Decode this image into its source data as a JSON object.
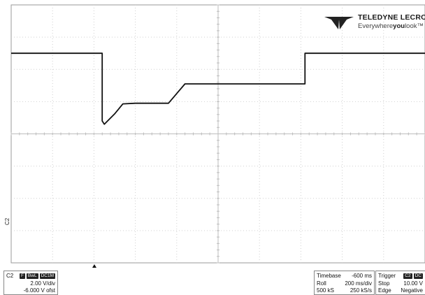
{
  "brand": {
    "name": "TELEDYNE LECROY",
    "tagline_pre": "Everywhere",
    "tagline_bold": "you",
    "tagline_post": "look",
    "tagline_tm": "™"
  },
  "channel": {
    "name": "C2",
    "marker": "C2",
    "badges": [
      "F",
      "BwL",
      "DC1M"
    ],
    "scale": "2.00 V/div",
    "offset": "-6.000 V ofst",
    "color": "#111111"
  },
  "timebase": {
    "title": "Timebase",
    "delay": "-600 ms",
    "mode": "Roll",
    "rate": "200 ms/div",
    "samples": "500 kS",
    "sample_rate": "250 kS/s"
  },
  "trigger": {
    "title": "Trigger",
    "badge": "C2",
    "badge2": "DC",
    "state": "Stop",
    "level": "10.00 V",
    "type": "Edge",
    "slope": "Negative"
  },
  "chart_data": {
    "type": "line",
    "grid": true,
    "divisions_x": 10,
    "divisions_y": 8,
    "x_unit": "div",
    "y_unit": "div",
    "ylim": [
      0,
      8
    ],
    "xlim": [
      0,
      10
    ],
    "series": [
      {
        "x": [
          0,
          2.2,
          2.2,
          2.25,
          2.5,
          2.7,
          3.0,
          3.5,
          3.8,
          4.1,
          4.2,
          5.0,
          6.0,
          7.0,
          7.1,
          7.1,
          8.0,
          9.0,
          10.0
        ],
        "y": [
          6.5,
          6.5,
          4.4,
          4.3,
          4.62,
          4.93,
          4.95,
          4.95,
          4.95,
          5.4,
          5.55,
          5.55,
          5.55,
          5.55,
          5.55,
          6.5,
          6.5,
          6.5,
          6.5
        ]
      }
    ]
  }
}
